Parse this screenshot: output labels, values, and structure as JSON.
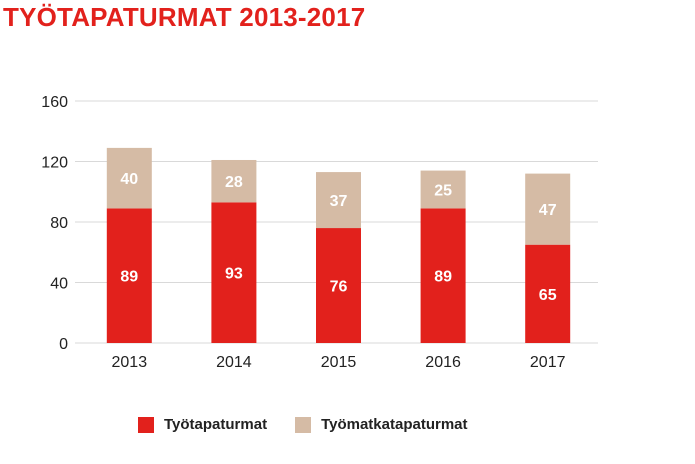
{
  "chart_data": {
    "type": "bar",
    "stacked": true,
    "title": "TYÖTAPATURMAT 2013-2017",
    "categories": [
      "2013",
      "2014",
      "2015",
      "2016",
      "2017"
    ],
    "series": [
      {
        "name": "Työtapaturmat",
        "values": [
          89,
          93,
          76,
          89,
          65
        ],
        "color": "#e2211c"
      },
      {
        "name": "Työmatkatapaturmat",
        "values": [
          40,
          28,
          37,
          25,
          47
        ],
        "color": "#d5bba5"
      }
    ],
    "ylim": [
      0,
      160
    ],
    "yticks": [
      0,
      40,
      80,
      120,
      160
    ],
    "grid": true,
    "legend": "bottom"
  }
}
